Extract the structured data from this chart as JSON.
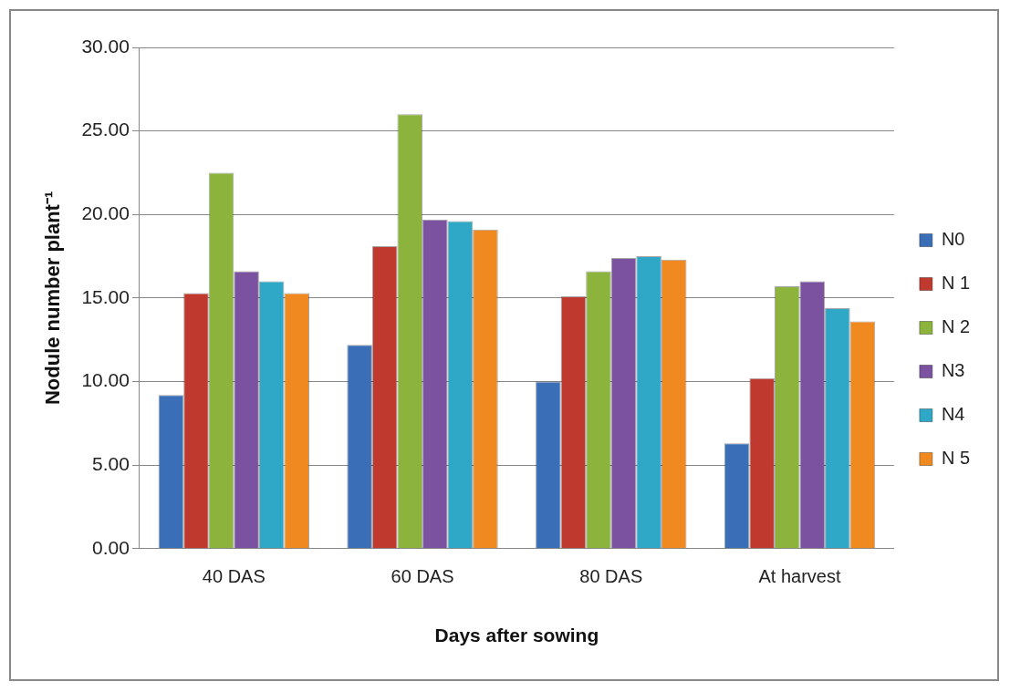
{
  "chart_data": {
    "type": "bar",
    "xlabel": "Days after sowing",
    "ylabel": "Nodule number plant⁻¹",
    "categories": [
      "40 DAS",
      "60 DAS",
      "80 DAS",
      "At harvest"
    ],
    "series": [
      {
        "name": "N0",
        "color": "#3a6fb8",
        "values": [
          9.2,
          12.2,
          10.0,
          6.3
        ]
      },
      {
        "name": "N 1",
        "color": "#c0392f",
        "values": [
          15.3,
          18.1,
          15.1,
          10.2
        ]
      },
      {
        "name": "N 2",
        "color": "#8cb43c",
        "values": [
          22.5,
          26.0,
          16.6,
          15.7
        ]
      },
      {
        "name": "N3",
        "color": "#7a52a0",
        "values": [
          16.6,
          19.7,
          17.4,
          16.0
        ]
      },
      {
        "name": "N4",
        "color": "#2fa8c8",
        "values": [
          16.0,
          19.6,
          17.5,
          14.4
        ]
      },
      {
        "name": "N 5",
        "color": "#f08a20",
        "values": [
          15.3,
          19.1,
          17.3,
          13.6
        ]
      }
    ],
    "ylim": [
      0,
      30
    ],
    "yticks": [
      {
        "value": 0,
        "label": "0.00"
      },
      {
        "value": 5,
        "label": "5.00"
      },
      {
        "value": 10,
        "label": "10.00"
      },
      {
        "value": 15,
        "label": "15.00"
      },
      {
        "value": 20,
        "label": "20.00"
      },
      {
        "value": 25,
        "label": "25.00"
      },
      {
        "value": 30,
        "label": "30.00"
      }
    ],
    "grid": "y",
    "legend": "right"
  }
}
